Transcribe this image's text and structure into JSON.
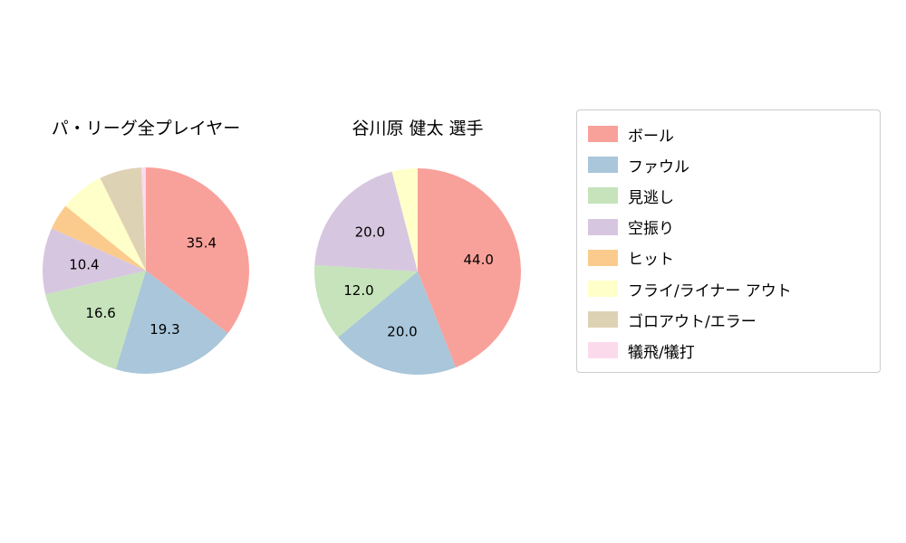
{
  "page": {
    "background": "#ffffff"
  },
  "chart_data": [
    {
      "type": "pie",
      "title": "パ・リーグ全プレイヤー",
      "start_angle": "top",
      "direction": "clockwise",
      "slices": [
        {
          "label": "ボール",
          "value": 35.4,
          "display": "35.4",
          "color": "#f8a19a"
        },
        {
          "label": "ファウル",
          "value": 19.3,
          "display": "19.3",
          "color": "#a9c6da"
        },
        {
          "label": "見逃し",
          "value": 16.6,
          "display": "16.6",
          "color": "#c6e3bb"
        },
        {
          "label": "空振り",
          "value": 10.4,
          "display": "10.4",
          "color": "#d7c6e0"
        },
        {
          "label": "ヒット",
          "value": 4.1,
          "display": "",
          "color": "#fbcb8e"
        },
        {
          "label": "フライ/ライナー アウト",
          "value": 6.9,
          "display": "",
          "color": "#ffffc9"
        },
        {
          "label": "ゴロアウト/エラー",
          "value": 6.6,
          "display": "",
          "color": "#ded2b4"
        },
        {
          "label": "犠飛/犠打",
          "value": 0.7,
          "display": "",
          "color": "#fbdaec"
        }
      ]
    },
    {
      "type": "pie",
      "title": "谷川原 健太 選手",
      "start_angle": "top",
      "direction": "clockwise",
      "slices": [
        {
          "label": "ボール",
          "value": 44.0,
          "display": "44.0",
          "color": "#f8a19a"
        },
        {
          "label": "ファウル",
          "value": 20.0,
          "display": "20.0",
          "color": "#a9c6da"
        },
        {
          "label": "見逃し",
          "value": 12.0,
          "display": "12.0",
          "color": "#c6e3bb"
        },
        {
          "label": "空振り",
          "value": 20.0,
          "display": "20.0",
          "color": "#d7c6e0"
        },
        {
          "label": "フライ/ライナー アウト",
          "value": 4.0,
          "display": "",
          "color": "#ffffc9"
        }
      ]
    }
  ],
  "legend": {
    "items": [
      {
        "label": "ボール",
        "color": "#f8a19a"
      },
      {
        "label": "ファウル",
        "color": "#a9c6da"
      },
      {
        "label": "見逃し",
        "color": "#c6e3bb"
      },
      {
        "label": "空振り",
        "color": "#d7c6e0"
      },
      {
        "label": "ヒット",
        "color": "#fbcb8e"
      },
      {
        "label": "フライ/ライナー アウト",
        "color": "#ffffc9"
      },
      {
        "label": "ゴロアウト/エラー",
        "color": "#ded2b4"
      },
      {
        "label": "犠飛/犠打",
        "color": "#fbdaec"
      }
    ]
  }
}
